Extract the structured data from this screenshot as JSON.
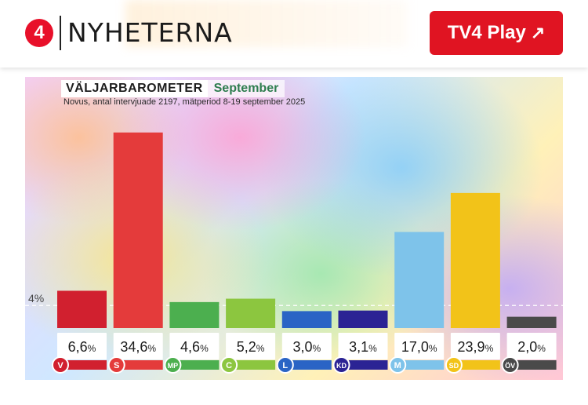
{
  "header": {
    "logo_text": "4",
    "brand": "NYHETERNA",
    "play_label": "TV4 Play",
    "play_icon": "arrow-up-right-icon"
  },
  "chart_data": {
    "type": "bar",
    "title": "VÄLJARBAROMETER",
    "subtitle": "September",
    "note": "Novus, antal intervjuade 2197, mätperiod 8-19 september 2025",
    "threshold_label": "4%",
    "threshold": 4,
    "categories": [
      "V",
      "S",
      "MP",
      "C",
      "L",
      "KD",
      "M",
      "SD",
      "ÖV"
    ],
    "values": [
      6.6,
      34.6,
      4.6,
      5.2,
      3.0,
      3.1,
      17.0,
      23.9,
      2.0
    ],
    "value_labels": [
      "6,6",
      "34,6",
      "4,6",
      "5,2",
      "3,0",
      "3,1",
      "17,0",
      "23,9",
      "2,0"
    ],
    "unit": "%",
    "colors": [
      "#d1202f",
      "#e43b3b",
      "#4caf4f",
      "#8cc63f",
      "#2a64c5",
      "#2b2394",
      "#7ec3ea",
      "#f2c319",
      "#4a4a4a"
    ],
    "ylim": [
      0,
      36
    ],
    "grid": false
  }
}
